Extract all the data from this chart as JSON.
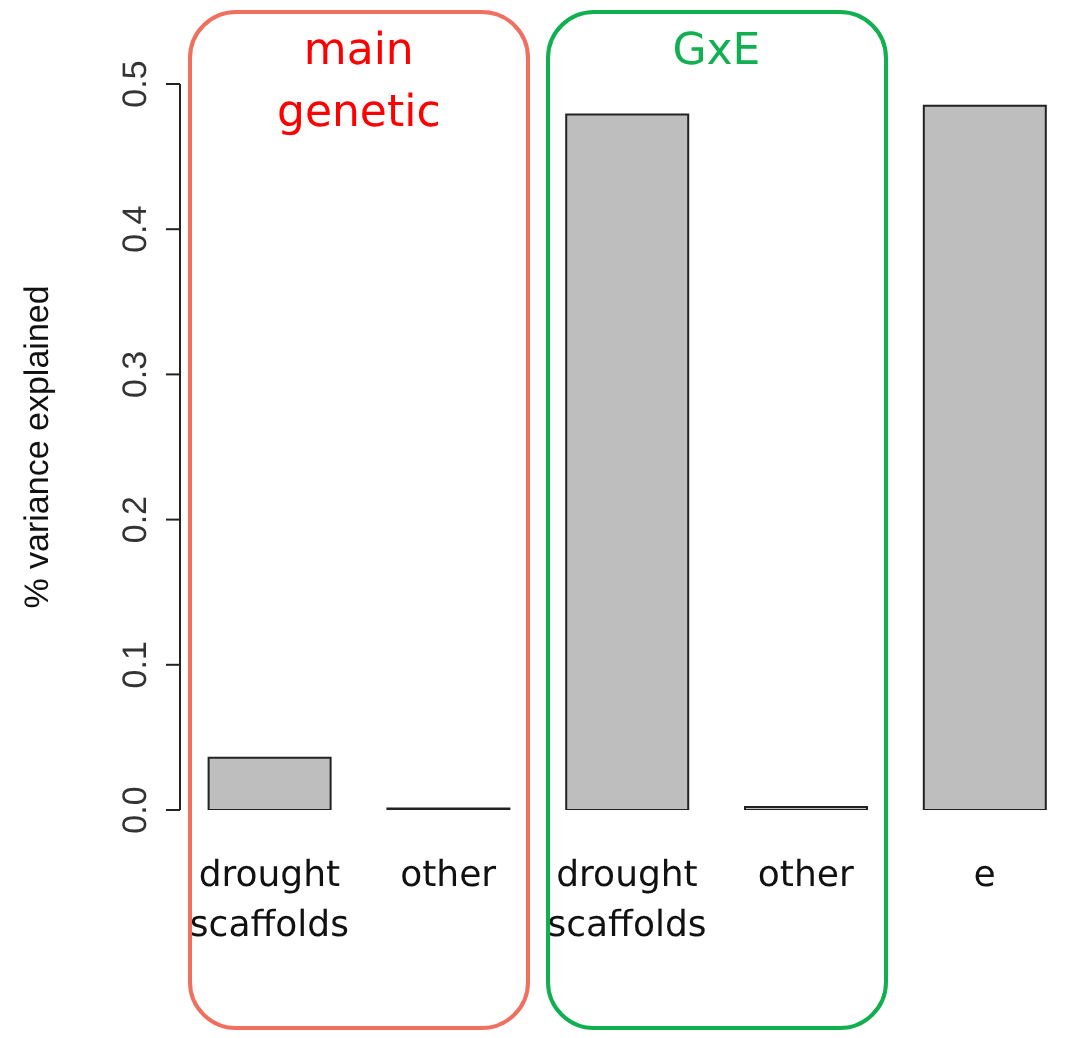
{
  "chart_data": {
    "type": "bar",
    "ylabel": "% variance explained",
    "categories": [
      "drought scaffolds",
      "other",
      "drought scaffolds",
      "other",
      "e"
    ],
    "values": [
      0.036,
      0.001,
      0.479,
      0.002,
      0.485
    ],
    "color": "#bebebe",
    "ylim": [
      0,
      0.5
    ],
    "yticks": [
      {
        "value": 0,
        "label": "0.0"
      },
      {
        "value": 0.1,
        "label": "0.1"
      },
      {
        "value": 0.2,
        "label": "0.2"
      },
      {
        "value": 0.3,
        "label": "0.3"
      },
      {
        "value": 0.4,
        "label": "0.4"
      },
      {
        "value": 0.5,
        "label": "0.5"
      }
    ],
    "annotations": [
      "main genetic",
      "GxE"
    ],
    "grid": false,
    "legend": false
  }
}
